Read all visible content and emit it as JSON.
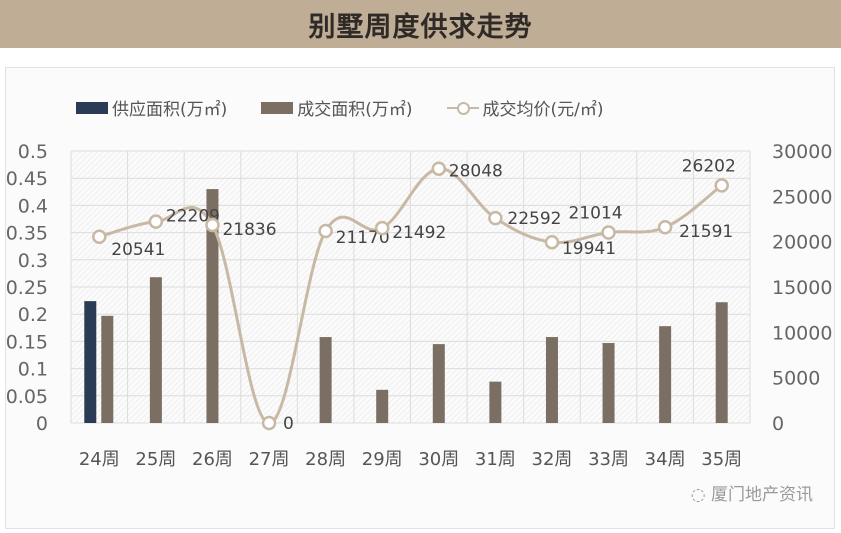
{
  "title": "别墅周度供求走势",
  "legend": {
    "supply": "供应面积(万㎡)",
    "deal": "成交面积(万㎡)",
    "price": "成交均价(元/㎡)"
  },
  "watermark": "厦门地产资讯",
  "colors": {
    "header_bg": "#c0ad96",
    "supply": "#2b3a55",
    "deal": "#7a6f62",
    "price_line": "#c8b9a4"
  },
  "chart_data": {
    "type": "bar",
    "title": "别墅周度供求走势",
    "categories": [
      "24周",
      "25周",
      "26周",
      "27周",
      "28周",
      "29周",
      "30周",
      "31周",
      "32周",
      "33周",
      "34周",
      "35周"
    ],
    "series": [
      {
        "name": "供应面积(万㎡)",
        "type": "bar",
        "axis": "left",
        "values": [
          0.224,
          0,
          0,
          0,
          0,
          0,
          0,
          0,
          0,
          0,
          0,
          0
        ]
      },
      {
        "name": "成交面积(万㎡)",
        "type": "bar",
        "axis": "left",
        "values": [
          0.197,
          0.268,
          0.43,
          0,
          0.158,
          0.061,
          0.145,
          0.076,
          0.158,
          0.147,
          0.178,
          0.222
        ]
      },
      {
        "name": "成交均价(元/㎡)",
        "type": "line",
        "axis": "right",
        "values": [
          20541,
          22209,
          21836,
          0,
          21170,
          21492,
          28048,
          22592,
          19941,
          21014,
          21591,
          26202
        ]
      }
    ],
    "y_left": {
      "ylim": [
        0,
        0.5
      ],
      "ticks": [
        "0",
        "0.05",
        "0.1",
        "0.15",
        "0.2",
        "0.25",
        "0.3",
        "0.35",
        "0.4",
        "0.45",
        "0.5"
      ]
    },
    "y_right": {
      "ylim": [
        0,
        30000
      ],
      "ticks": [
        "0",
        "5000",
        "10000",
        "15000",
        "20000",
        "25000",
        "30000"
      ]
    },
    "grid": true,
    "legend_position": "top"
  }
}
